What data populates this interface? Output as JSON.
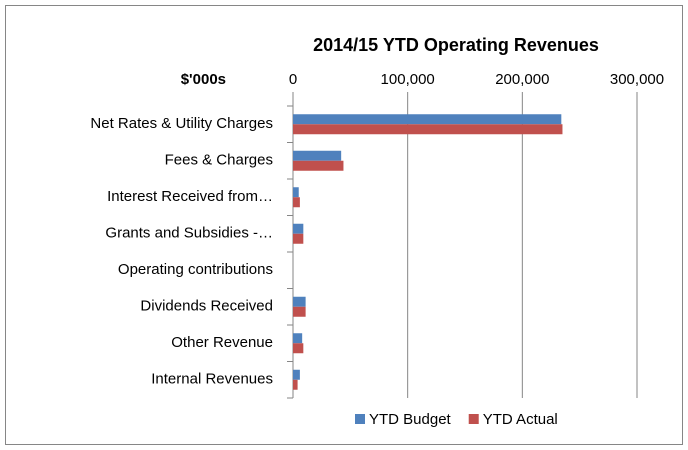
{
  "chart_data": {
    "type": "hbar",
    "title": "2014/15 YTD Operating Revenues",
    "axis_label": "$'000s",
    "categories": [
      "Net Rates & Utility Charges",
      "Fees & Charges",
      "Interest Received from…",
      "Grants and Subsidies -…",
      "Operating contributions",
      "Dividends Received",
      "Other Revenue",
      "Internal Revenues"
    ],
    "series": [
      {
        "name": "YTD Budget",
        "color": "#4f81bd",
        "values": [
          234000,
          42000,
          5000,
          9000,
          0,
          11000,
          8000,
          6000
        ]
      },
      {
        "name": "YTD Actual",
        "color": "#c0504d",
        "values": [
          235000,
          44000,
          6000,
          9000,
          0,
          11000,
          9000,
          4000
        ]
      }
    ],
    "xlim": [
      0,
      300000
    ],
    "xticks": [
      0,
      {
        "value": 100000,
        "label": "100,000"
      },
      {
        "value": 200000,
        "label": "200,000"
      },
      {
        "value": 300000,
        "label": "300,000"
      }
    ],
    "grid": true,
    "legend": "bottom"
  }
}
